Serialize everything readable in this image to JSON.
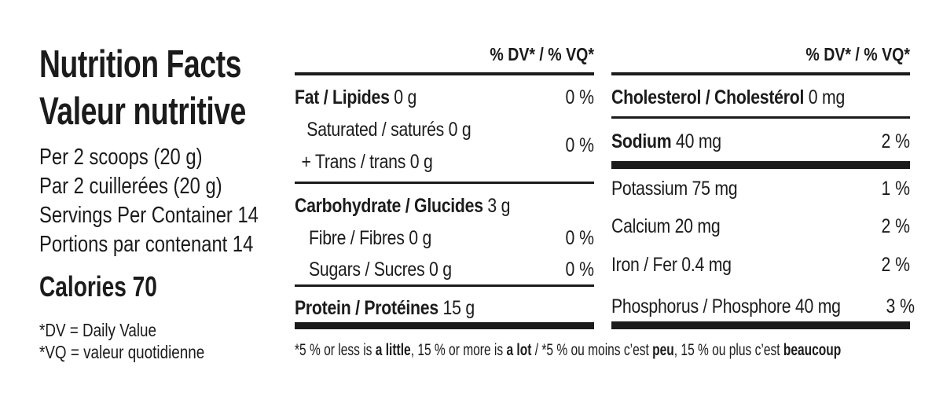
{
  "header": {
    "title_en": "Nutrition Facts",
    "title_fr": "Valeur nutritive"
  },
  "serving": {
    "line1": "Per 2 scoops (20 g)",
    "line2": "Par 2 cuillerées (20 g)",
    "line3": "Servings Per Container 14",
    "line4": "Portions par contenant 14",
    "calories": "Calories 70"
  },
  "legend": {
    "dv": "*DV = Daily Value",
    "vq": "*VQ = valeur quotidienne"
  },
  "middle_column": {
    "header": "% DV* / % VQ*",
    "fat": {
      "bold": "Fat / Lipides",
      "rest": " 0 g",
      "dv": "0 %"
    },
    "saturated_trans": {
      "line1": "Saturated / saturés 0 g",
      "line2": "+ Trans / trans 0 g",
      "dv": "0 %"
    },
    "carbohydrate": {
      "bold": "Carbohydrate / Glucides",
      "rest": " 3 g"
    },
    "fibre": {
      "label": "Fibre / Fibres 0 g",
      "dv": "0 %"
    },
    "sugars": {
      "label": "Sugars / Sucres 0 g",
      "dv": "0 %"
    },
    "protein": {
      "bold": "Protein / Protéines",
      "rest": " 15 g"
    }
  },
  "right_column": {
    "header": "% DV* / % VQ*",
    "cholesterol": {
      "bold": "Cholesterol / Cholestérol",
      "rest": " 0 mg"
    },
    "sodium": {
      "bold": "Sodium",
      "rest": " 40 mg",
      "dv": "2 %"
    },
    "potassium": {
      "label": "Potassium 75 mg",
      "dv": "1 %"
    },
    "calcium": {
      "label": "Calcium 20 mg",
      "dv": "2 %"
    },
    "iron": {
      "label": "Iron / Fer 0.4 mg",
      "dv": "2 %"
    },
    "phosphorus": {
      "label": "Phosphorus / Phosphore 40 mg",
      "dv": "3 %"
    }
  },
  "footnote": {
    "p1": "*5 % or less is ",
    "p2": "a little",
    "p3": ", 15 % or more is ",
    "p4": "a lot",
    "p5": " / *5 % ou moins c’est ",
    "p6": "peu",
    "p7": ", 15 % ou plus c’est ",
    "p8": "beaucoup"
  },
  "colors": {
    "ink": "#1b1b1b",
    "background": "#ffffff"
  }
}
